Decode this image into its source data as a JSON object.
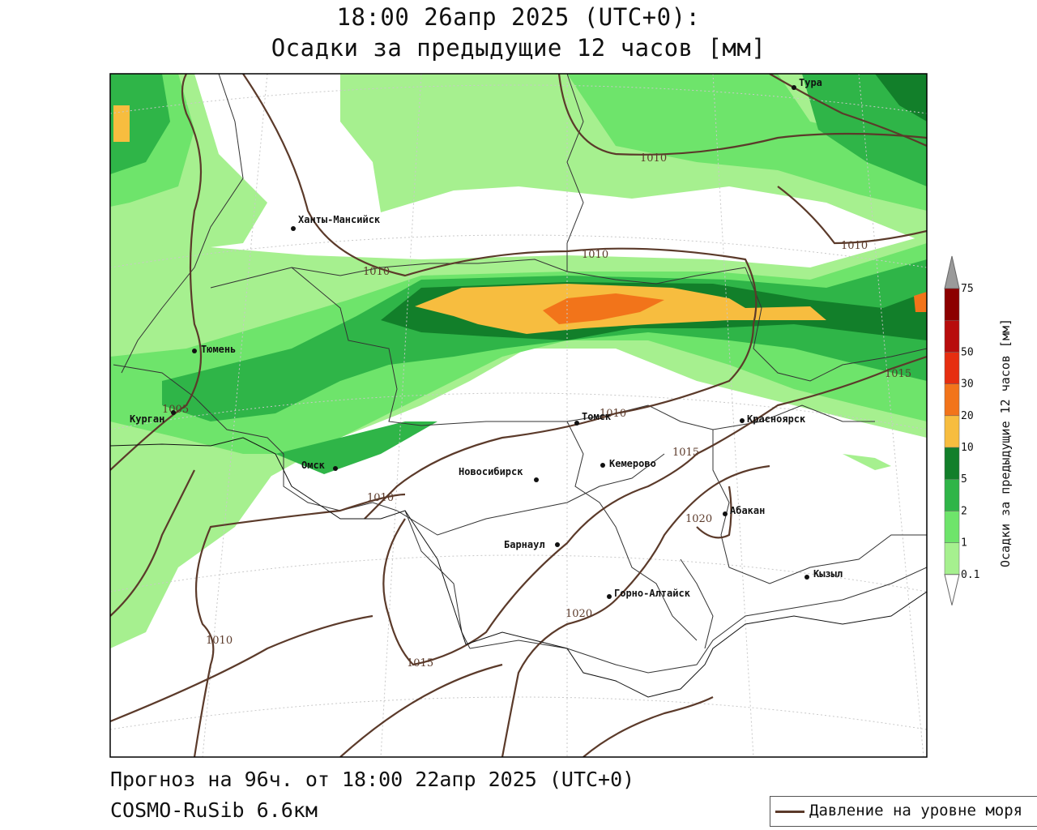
{
  "title": {
    "line1": "18:00 26апр 2025 (UTC+0):",
    "line2": "Осадки за предыдущие 12 часов [мм]"
  },
  "footer": {
    "line1": "Прогноз на 96ч. от 18:00 22апр 2025 (UTC+0)",
    "line2": "COSMO-RuSib 6.6км"
  },
  "legend": {
    "label": "Давление на уровне моря",
    "color": "#5b3a2a"
  },
  "colorbar": {
    "title": "Осадки за предыдущие 12 часов [мм]",
    "levels": [
      "0.1",
      "1",
      "2",
      "5",
      "10",
      "20",
      "30",
      "50",
      "75"
    ],
    "colors": [
      "#a6f08f",
      "#6ee46b",
      "#2fb548",
      "#127f2a",
      "#f7bd3f",
      "#f2741a",
      "#e62e10",
      "#b80d0d",
      "#8c0000"
    ],
    "overflow_color": "#9a9a9a"
  },
  "cities": [
    {
      "name": "Тура"
    },
    {
      "name": "Ханты-Мансийск"
    },
    {
      "name": "Тюмень"
    },
    {
      "name": "Курган"
    },
    {
      "name": "Омск"
    },
    {
      "name": "Новосибирск"
    },
    {
      "name": "Томск"
    },
    {
      "name": "Кемерово"
    },
    {
      "name": "Красноярск"
    },
    {
      "name": "Абакан"
    },
    {
      "name": "Барнаул"
    },
    {
      "name": "Горно-Алтайск"
    },
    {
      "name": "Кызыл"
    }
  ],
  "isobars": [
    {
      "value": "1010"
    },
    {
      "value": "1010"
    },
    {
      "value": "1010"
    },
    {
      "value": "1010"
    },
    {
      "value": "1010"
    },
    {
      "value": "1010"
    },
    {
      "value": "1010"
    },
    {
      "value": "1005"
    },
    {
      "value": "1015"
    },
    {
      "value": "1015"
    },
    {
      "value": "1015"
    },
    {
      "value": "1020"
    },
    {
      "value": "1020"
    }
  ]
}
